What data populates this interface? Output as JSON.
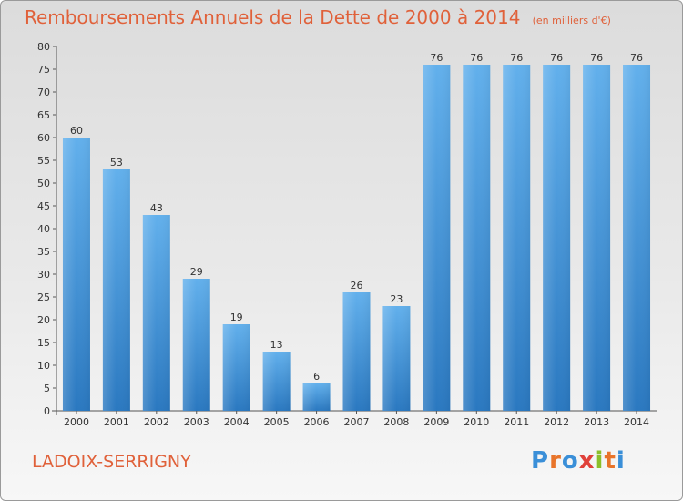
{
  "header": {
    "title": "Remboursements Annuels de la Dette de 2000 à 2014",
    "subtitle": "(en milliers d'€)"
  },
  "footer": {
    "commune": "LADOIX-SERRIGNY",
    "logo_text": "Proxiti",
    "logo_colors": [
      "#3a8fd8",
      "#e8742a",
      "#3a8fd8",
      "#e0413a",
      "#8bbf2a",
      "#e8742a",
      "#3a8fd8"
    ]
  },
  "chart_data": {
    "type": "bar",
    "title": "Remboursements Annuels de la Dette de 2000 à 2014",
    "subtitle": "(en milliers d'€)",
    "categories": [
      "2000",
      "2001",
      "2002",
      "2003",
      "2004",
      "2005",
      "2006",
      "2007",
      "2008",
      "2009",
      "2010",
      "2011",
      "2012",
      "2013",
      "2014"
    ],
    "values": [
      60,
      53,
      43,
      29,
      19,
      13,
      6,
      26,
      23,
      76,
      76,
      76,
      76,
      76,
      76
    ],
    "ylim": [
      0,
      80
    ],
    "yticks": [
      0,
      5,
      10,
      15,
      20,
      25,
      30,
      35,
      40,
      45,
      50,
      55,
      60,
      65,
      70,
      75,
      80
    ],
    "grid": false,
    "bar_color": "#4a9ee0"
  }
}
